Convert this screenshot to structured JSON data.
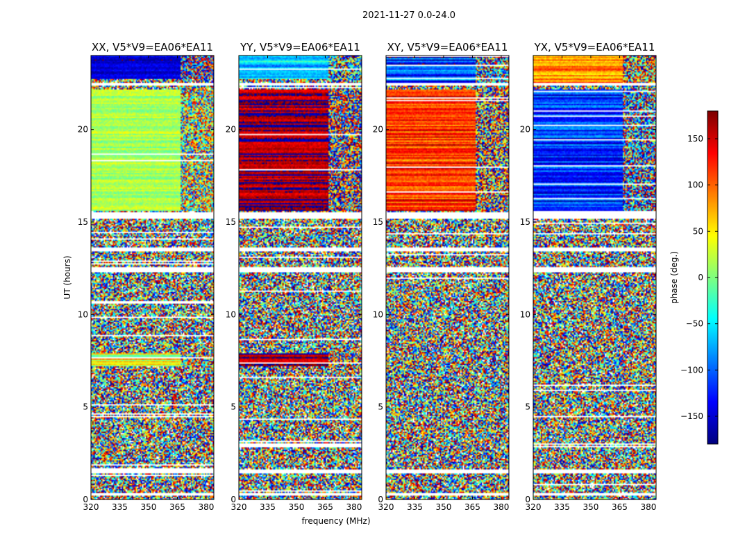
{
  "chart_data": {
    "type": "heatmap",
    "suptitle": "2021-11-27 0.0-24.0",
    "panels": [
      {
        "title": "XX, V5*V9=EA06*EA11",
        "pol": "XX",
        "clean_top": [
          {
            "t0": 22.7,
            "t1": 24.0,
            "phase": -150,
            "var": 40
          },
          {
            "t0": 15.6,
            "t1": 22.2,
            "phase": 15,
            "var": 40
          },
          {
            "t0": 7.2,
            "t1": 7.9,
            "phase": 30,
            "var": 120
          }
        ]
      },
      {
        "title": "YY, V5*V9=EA06*EA11",
        "pol": "YY",
        "clean_top": [
          {
            "t0": 22.7,
            "t1": 24.0,
            "phase": -60,
            "var": 80
          },
          {
            "t0": 15.6,
            "t1": 22.2,
            "phase": 170,
            "var": 60
          },
          {
            "t0": 7.2,
            "t1": 7.9,
            "phase": 170,
            "var": 60
          }
        ]
      },
      {
        "title": "XY, V5*V9=EA06*EA11",
        "pol": "XY",
        "clean_top": [
          {
            "t0": 22.5,
            "t1": 24.0,
            "phase": -110,
            "var": 120
          },
          {
            "t0": 15.6,
            "t1": 22.2,
            "phase": 120,
            "var": 90
          }
        ]
      },
      {
        "title": "YX, V5*V9=EA06*EA11",
        "pol": "YX",
        "clean_top": [
          {
            "t0": 22.5,
            "t1": 24.0,
            "phase": 80,
            "var": 90
          },
          {
            "t0": 15.6,
            "t1": 22.2,
            "phase": -120,
            "var": 90
          }
        ]
      }
    ],
    "xlabel": "frequency (MHz)",
    "ylabel": "UT (hours)",
    "xlim": [
      320,
      384
    ],
    "xticks": [
      320,
      335,
      350,
      365,
      380
    ],
    "ylim": [
      0,
      24
    ],
    "yticks": [
      0,
      5,
      10,
      15,
      20
    ],
    "colorbar": {
      "label": "phase (deg.)",
      "range": [
        -180,
        180
      ],
      "ticks": [
        150,
        100,
        50,
        0,
        -50,
        -100,
        -150
      ],
      "tick_labels": [
        "150",
        "100",
        "50",
        "0",
        "−50",
        "−100",
        "−150"
      ],
      "colormap": "jet"
    },
    "flagged_gaps_hours": [
      [
        0.2,
        0.35
      ],
      [
        1.4,
        1.6
      ],
      [
        12.3,
        12.6
      ],
      [
        13.4,
        13.6
      ],
      [
        15.2,
        15.55
      ],
      [
        22.4,
        22.5
      ]
    ]
  }
}
